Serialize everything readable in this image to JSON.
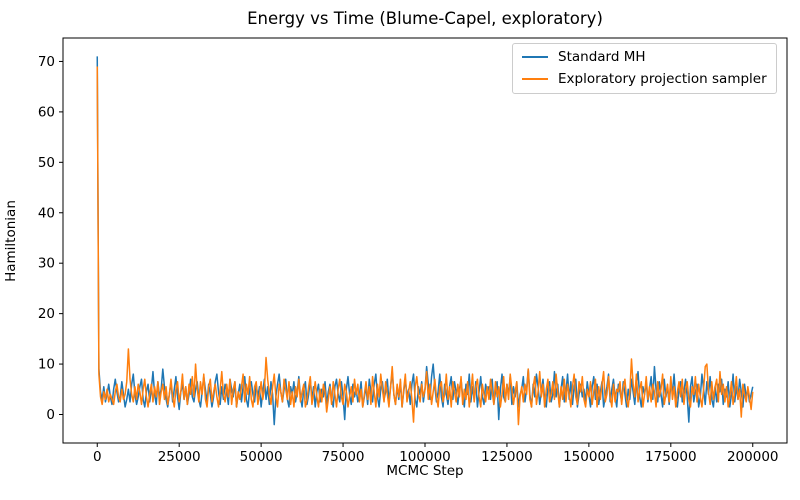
{
  "figure": {
    "title": "Energy vs Time (Blume-Capel, exploratory)",
    "xlabel": "MCMC Step",
    "ylabel": "Hamiltonian"
  },
  "chart_data": {
    "type": "line",
    "title": "Energy vs Time (Blume-Capel, exploratory)",
    "xlabel": "MCMC Step",
    "ylabel": "Hamiltonian",
    "grid": false,
    "legend_position": "upper right",
    "xlim": [
      -10450,
      210450
    ],
    "ylim": [
      -5.65,
      74.65
    ],
    "xticks": [
      0,
      25000,
      50000,
      75000,
      100000,
      125000,
      150000,
      175000,
      200000
    ],
    "yticks": [
      0,
      10,
      20,
      30,
      40,
      50,
      60,
      70
    ],
    "x_start": 0,
    "x_step": 500,
    "series": [
      {
        "name": "Standard MH",
        "color": "#1f77b4",
        "values": [
          71,
          9,
          4.5,
          3,
          5.5,
          2.5,
          4,
          6,
          3.5,
          2,
          5,
          7,
          4.5,
          2.5,
          3.5,
          6.5,
          4,
          1.5,
          3,
          5,
          2.5,
          6,
          8,
          4,
          2,
          3.5,
          5.5,
          7,
          3,
          1.5,
          4.5,
          6,
          2.5,
          5,
          8.5,
          4,
          2,
          6.5,
          3.5,
          5,
          9,
          5.5,
          3,
          1.5,
          4,
          6.5,
          2.5,
          5,
          7.5,
          3.5,
          1,
          4.5,
          6,
          3,
          5.5,
          2,
          4,
          7,
          3.5,
          2.5,
          5,
          6.5,
          3,
          1.5,
          4.5,
          7.5,
          5,
          2.5,
          6,
          4,
          1.5,
          3.5,
          6.5,
          8,
          4.5,
          2,
          5.5,
          3,
          6,
          4.5,
          2,
          7,
          5,
          3.5,
          6.5,
          1.5,
          4,
          6,
          2.5,
          5.5,
          7.5,
          3,
          1.5,
          5,
          6.5,
          4,
          2.5,
          6,
          3.5,
          5.5,
          1.5,
          4.5,
          7,
          3,
          5.5,
          2,
          6.5,
          4,
          -2,
          3.5,
          6,
          8,
          4.5,
          2.5,
          5,
          7,
          3,
          1.5,
          5.5,
          4,
          6.5,
          2.5,
          4.5,
          7.5,
          3.5,
          1.5,
          5,
          6.5,
          2,
          4,
          7,
          3,
          5.5,
          1.5,
          4.5,
          6,
          2.5,
          5,
          3.5,
          6.5,
          2,
          4.5,
          6,
          3,
          1.5,
          5.5,
          7,
          4,
          2.5,
          6.5,
          3.5,
          -1,
          5,
          7.5,
          4,
          2,
          6,
          3.5,
          5,
          2.5,
          4,
          6.5,
          1.5,
          3.5,
          5.5,
          2,
          7,
          4.5,
          2.5,
          6,
          8,
          3.5,
          1.5,
          5,
          6.5,
          3,
          4.5,
          7,
          2.5,
          5.5,
          8.5,
          4,
          2,
          5.5,
          3,
          6.5,
          1.5,
          4.5,
          7,
          3.5,
          5,
          2,
          6,
          8,
          3,
          1.5,
          5.5,
          4,
          6.5,
          2.5,
          5,
          9.5,
          6,
          3,
          7.5,
          10,
          5.5,
          2.5,
          4.5,
          8,
          3.5,
          1.5,
          6,
          4,
          2,
          5.5,
          7.5,
          3,
          6.5,
          4.5,
          2,
          5,
          7,
          3.5,
          1.5,
          6,
          4,
          8,
          2.5,
          5.5,
          3,
          6.5,
          1.5,
          4.5,
          7.5,
          3.5,
          2,
          6,
          4.5,
          5.5,
          3,
          7,
          2,
          4.5,
          6.5,
          -1,
          5,
          8,
          3.5,
          2.5,
          6,
          4,
          7.5,
          2,
          5.5,
          3.5,
          6.5,
          1.5,
          4,
          5,
          7.5,
          2.5,
          5,
          9,
          4,
          1.5,
          6,
          3.5,
          8,
          5.5,
          2,
          4.5,
          7,
          3,
          1.5,
          5.5,
          6.5,
          2.5,
          4,
          8.5,
          3.5,
          6,
          1.5,
          5,
          7.5,
          2.5,
          4.5,
          8,
          3,
          6.5,
          2,
          5.5,
          7,
          1.5,
          4,
          6,
          3.5,
          5,
          2.5,
          6.5,
          4,
          1.5,
          5.5,
          7.5,
          3,
          6,
          2,
          4.5,
          6.5,
          1.5,
          3.5,
          5.5,
          8,
          2.5,
          5,
          7,
          3.5,
          1.5,
          6,
          4.5,
          2.5,
          6.5,
          4,
          1.5,
          5,
          3,
          7,
          4.5,
          2,
          6,
          8.5,
          3.5,
          1.5,
          5.5,
          4,
          6.5,
          2.5,
          5,
          7.5,
          3,
          9.5,
          5,
          2.5,
          6.5,
          4,
          1.5,
          7,
          3.5,
          5.5,
          2,
          6,
          4.5,
          8,
          3,
          1.5,
          5,
          6.5,
          2.5,
          4.5,
          7,
          3.5,
          -1.5,
          5.5,
          7.5,
          2.5,
          4.5,
          6,
          1.5,
          3.5,
          8,
          5,
          2,
          6.5,
          4,
          7.5,
          3,
          1.5,
          5.5,
          2.5,
          6,
          4.5,
          7,
          2,
          5,
          3.5,
          6.5,
          1.5,
          4,
          8,
          2.5,
          5.5,
          3,
          7,
          4.5,
          1.5,
          6,
          3.5,
          5,
          2.5,
          4,
          5.5
        ]
      },
      {
        "name": "Exploratory projection sampler",
        "color": "#ff7f0e",
        "values": [
          69,
          8,
          3.5,
          2,
          4.5,
          3,
          5,
          2.5,
          4,
          3,
          2,
          4.5,
          6,
          3.5,
          2.5,
          5,
          3,
          4,
          6.5,
          13,
          7,
          4,
          2.5,
          5.5,
          3,
          6,
          4.5,
          2,
          5,
          7,
          3.5,
          1.5,
          4,
          6,
          2.5,
          5.5,
          3.5,
          6.5,
          2,
          4.5,
          6,
          3,
          5.5,
          2,
          4,
          7,
          3.5,
          1.5,
          5,
          6.5,
          2.5,
          4.5,
          8,
          3,
          5.5,
          2,
          6,
          4,
          7.5,
          3.5,
          10,
          5,
          2.5,
          6.5,
          4,
          8,
          3,
          1.5,
          5.5,
          7,
          2.5,
          4.5,
          6,
          3.5,
          1.5,
          5,
          8.5,
          4,
          2.5,
          6,
          3.5,
          7,
          2,
          5,
          6.5,
          1.5,
          4.5,
          3,
          5.5,
          8,
          2.5,
          6,
          4,
          7.5,
          3,
          1.5,
          5.5,
          6.5,
          2,
          4,
          6.5,
          3,
          5,
          11.3,
          7,
          4,
          2,
          5.5,
          8,
          3.5,
          1.5,
          6,
          4.5,
          2.5,
          7,
          5,
          3,
          6.5,
          2,
          4.5,
          1.5,
          5.5,
          3.5,
          7,
          2.5,
          4.5,
          6,
          1.5,
          3,
          5.5,
          7.5,
          2,
          4,
          6.5,
          3.5,
          1.5,
          5,
          2.5,
          6,
          4.5,
          0.5,
          3,
          5.5,
          2,
          6.5,
          4,
          1.5,
          5,
          7,
          3.5,
          2,
          6,
          4.5,
          1.5,
          3.5,
          5.5,
          2.5,
          7,
          4,
          6,
          2.5,
          5,
          1.5,
          4,
          6.5,
          3,
          5.5,
          2,
          7.5,
          4.5,
          1.5,
          6,
          3.5,
          8,
          5,
          2.5,
          6.5,
          4,
          1.5,
          5.5,
          9.5,
          4,
          2,
          6,
          3.5,
          7,
          1.5,
          5,
          8,
          2.5,
          4.5,
          6.5,
          3,
          -1.5,
          5.5,
          7.5,
          4,
          2.5,
          6,
          3.5,
          5,
          8.5,
          3,
          6,
          2,
          4.5,
          7,
          3.5,
          1.5,
          5.5,
          6.5,
          2.5,
          4,
          8,
          3,
          5.5,
          1.5,
          6.5,
          4.5,
          2.5,
          6,
          3.5,
          7.5,
          2,
          5,
          3,
          6.5,
          1.5,
          4.5,
          8,
          2.5,
          5.5,
          7,
          3.5,
          1.5,
          6,
          4,
          2.5,
          5.5,
          3,
          7,
          4.5,
          2,
          6.5,
          3.5,
          5.5,
          1.5,
          4,
          7.5,
          2.5,
          6,
          3,
          8,
          5,
          2,
          4.5,
          6.5,
          -2,
          3.5,
          5.5,
          2.5,
          6,
          4,
          9,
          3,
          1.5,
          5.5,
          7.5,
          2,
          4.5,
          8.5,
          3.5,
          6,
          1.5,
          5,
          7,
          2.5,
          4,
          6.5,
          3,
          8,
          4.5,
          1.5,
          5.5,
          3,
          7,
          2.5,
          6,
          4,
          1.5,
          5.5,
          8,
          3.5,
          2,
          6.5,
          4.5,
          7.5,
          3,
          1.5,
          5,
          3.5,
          6.5,
          2,
          4.5,
          7,
          1.5,
          5.5,
          3,
          6,
          8.5,
          2.5,
          4,
          7.5,
          3.5,
          1.5,
          6,
          2.5,
          5,
          4.5,
          6.5,
          2,
          5.5,
          7,
          3,
          1.5,
          4.5,
          11,
          6,
          3.5,
          8,
          2.5,
          5,
          6.5,
          1.5,
          4,
          7.5,
          3,
          5.5,
          2.5,
          6,
          4.5,
          1.5,
          6.5,
          3.5,
          5,
          8,
          2,
          4,
          6,
          2.5,
          7.5,
          3,
          5.5,
          1.5,
          4.5,
          6.5,
          3.5,
          7,
          2,
          5,
          6.5,
          3,
          1.5,
          5.5,
          4,
          7.5,
          2.5,
          6,
          3.5,
          1.5,
          5,
          9.5,
          10,
          4.5,
          2,
          6.5,
          3,
          5.5,
          7,
          2.5,
          8.5,
          4,
          6,
          2.5,
          5.5,
          1.5,
          3.5,
          6.5,
          2,
          4.5,
          7.5,
          3,
          5,
          -0.5,
          6,
          4,
          2.5,
          5.5,
          3.5,
          1,
          4.5
        ]
      }
    ]
  }
}
